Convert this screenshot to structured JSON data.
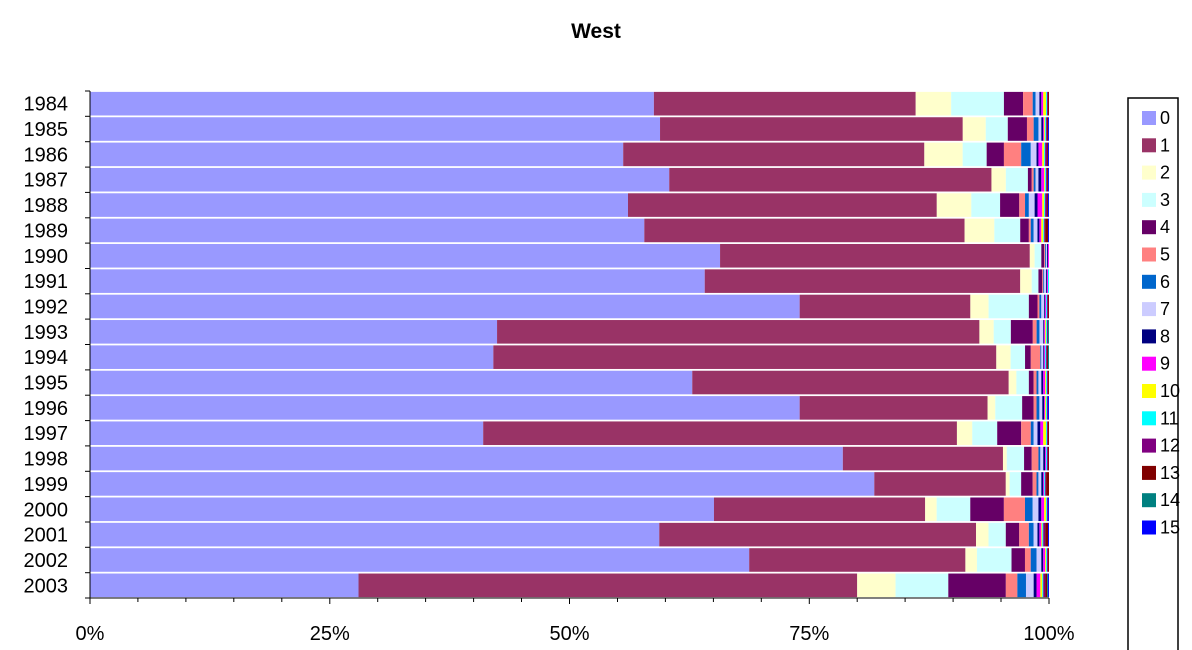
{
  "chart_data": {
    "type": "bar",
    "orientation": "horizontal",
    "stacking": "percent",
    "title": "West",
    "xlabel": "",
    "ylabel": "",
    "xlim": [
      0,
      100
    ],
    "x_ticks": [
      "0%",
      "25%",
      "50%",
      "75%",
      "100%"
    ],
    "grid": false,
    "legend": "right",
    "categories": [
      "1984",
      "1985",
      "1986",
      "1987",
      "1988",
      "1989",
      "1990",
      "1991",
      "1992",
      "1993",
      "1994",
      "1995",
      "1996",
      "1997",
      "1998",
      "1999",
      "2000",
      "2001",
      "2002",
      "2003"
    ],
    "series": [
      {
        "name": "0",
        "color": "#9999FF",
        "values": [
          58.8,
          59.5,
          55.6,
          60.4,
          56.1,
          57.8,
          65.7,
          64.1,
          74.0,
          42.7,
          42.1,
          62.8,
          74.0,
          41.0,
          78.5,
          81.7,
          65.0,
          59.3,
          68.6,
          28.0
        ]
      },
      {
        "name": "1",
        "color": "#993366",
        "values": [
          27.3,
          31.6,
          31.4,
          33.6,
          32.2,
          33.4,
          32.3,
          32.9,
          17.8,
          50.6,
          52.5,
          33.0,
          19.6,
          49.4,
          16.7,
          13.7,
          22.0,
          33.0,
          22.5,
          52.0
        ]
      },
      {
        "name": "2",
        "color": "#FFFFCC",
        "values": [
          3.7,
          2.4,
          4.0,
          1.5,
          3.6,
          3.1,
          0.5,
          1.2,
          1.9,
          1.5,
          1.5,
          0.8,
          0.8,
          1.6,
          0.4,
          0.4,
          1.2,
          1.3,
          1.2,
          4.0
        ]
      },
      {
        "name": "3",
        "color": "#CCFFFF",
        "values": [
          5.5,
          2.3,
          2.5,
          2.3,
          3.0,
          2.7,
          0.7,
          0.7,
          4.2,
          1.8,
          1.5,
          1.3,
          2.8,
          2.6,
          1.8,
          1.2,
          3.5,
          1.8,
          3.6,
          5.5
        ]
      },
      {
        "name": "4",
        "color": "#660066",
        "values": [
          2.0,
          2.0,
          1.8,
          0.4,
          2.0,
          0.9,
          0.3,
          0.4,
          0.9,
          2.3,
          0.6,
          0.5,
          1.2,
          2.5,
          0.8,
          1.2,
          3.5,
          1.4,
          1.4,
          6.0
        ]
      },
      {
        "name": "5",
        "color": "#FF8080",
        "values": [
          1.0,
          0.7,
          1.8,
          0.2,
          0.6,
          0.2,
          0.1,
          0.1,
          0.2,
          0.4,
          1.0,
          0.3,
          0.3,
          1.0,
          0.7,
          0.4,
          2.2,
          1.0,
          0.6,
          1.2
        ]
      },
      {
        "name": "6",
        "color": "#0066CC",
        "values": [
          0.3,
          0.5,
          1.0,
          0.2,
          0.4,
          0.3,
          0.1,
          0.1,
          0.2,
          0.3,
          0.1,
          0.2,
          0.3,
          0.3,
          0.2,
          0.2,
          0.8,
          0.5,
          0.6,
          0.9
        ]
      },
      {
        "name": "7",
        "color": "#CCCCFF",
        "values": [
          0.4,
          0.3,
          0.6,
          0.3,
          0.6,
          0.4,
          0.1,
          0.2,
          0.3,
          0.4,
          0.2,
          0.3,
          0.3,
          0.4,
          0.3,
          0.3,
          0.6,
          0.4,
          0.5,
          0.8
        ]
      },
      {
        "name": "8",
        "color": "#000080",
        "values": [
          0.2,
          0.2,
          0.2,
          0.3,
          0.3,
          0.2,
          0.1,
          0.1,
          0.1,
          0.1,
          0.1,
          0.2,
          0.2,
          0.3,
          0.2,
          0.2,
          0.3,
          0.2,
          0.2,
          0.3
        ]
      },
      {
        "name": "9",
        "color": "#FF00FF",
        "values": [
          0.2,
          0.1,
          0.4,
          0.3,
          0.5,
          0.2,
          0.1,
          0.1,
          0.1,
          0.1,
          0.1,
          0.2,
          0.1,
          0.3,
          0.1,
          0.1,
          0.3,
          0.2,
          0.2,
          0.4
        ]
      },
      {
        "name": "10",
        "color": "#FFFF00",
        "values": [
          0.3,
          0.1,
          0.2,
          0.1,
          0.2,
          0.2,
          0.0,
          0.0,
          0.0,
          0.1,
          0.0,
          0.1,
          0.1,
          0.3,
          0.0,
          0.0,
          0.2,
          0.1,
          0.1,
          0.2
        ]
      },
      {
        "name": "11",
        "color": "#00FFFF",
        "values": [
          0.1,
          0.1,
          0.1,
          0.1,
          0.1,
          0.1,
          0.0,
          0.1,
          0.1,
          0.1,
          0.1,
          0.1,
          0.1,
          0.1,
          0.1,
          0.1,
          0.1,
          0.1,
          0.1,
          0.1
        ]
      },
      {
        "name": "12",
        "color": "#800080",
        "values": [
          0.1,
          0.1,
          0.2,
          0.1,
          0.2,
          0.1,
          0.0,
          0.0,
          0.1,
          0.1,
          0.1,
          0.1,
          0.1,
          0.1,
          0.1,
          0.1,
          0.1,
          0.2,
          0.1,
          0.2
        ]
      },
      {
        "name": "13",
        "color": "#800000",
        "values": [
          0.1,
          0.1,
          0.1,
          0.1,
          0.1,
          0.3,
          0.0,
          0.0,
          0.1,
          0.0,
          0.1,
          0.1,
          0.0,
          0.1,
          0.1,
          0.3,
          0.0,
          0.3,
          0.1,
          0.2
        ]
      },
      {
        "name": "14",
        "color": "#008080",
        "values": [
          0.0,
          0.0,
          0.0,
          0.0,
          0.0,
          0.0,
          0.0,
          0.0,
          0.0,
          0.1,
          0.1,
          0.0,
          0.0,
          0.0,
          0.0,
          0.0,
          0.0,
          0.0,
          0.0,
          0.1
        ]
      },
      {
        "name": "15",
        "color": "#0000FF",
        "values": [
          0.0,
          0.1,
          0.1,
          0.1,
          0.1,
          0.1,
          0.0,
          0.0,
          0.0,
          0.0,
          0.0,
          0.0,
          0.1,
          0.0,
          0.0,
          0.0,
          0.1,
          0.1,
          0.0,
          0.1
        ]
      }
    ]
  }
}
